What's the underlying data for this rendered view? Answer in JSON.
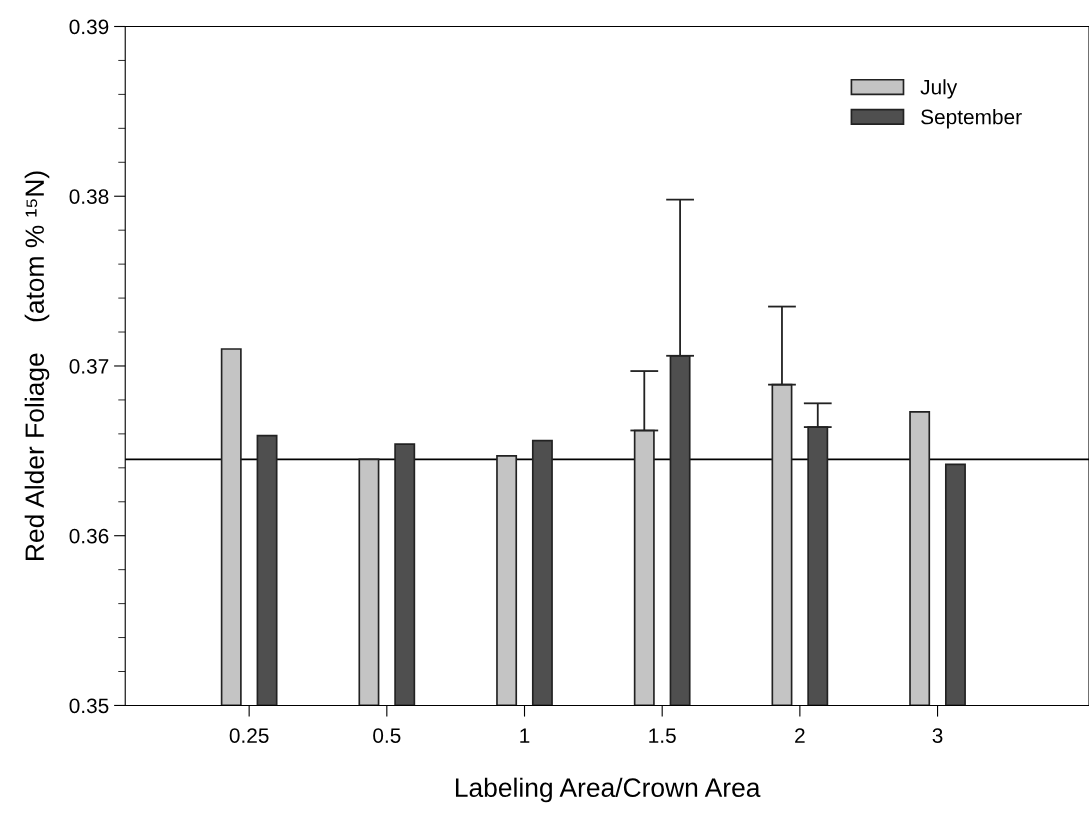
{
  "chart_data": {
    "type": "bar",
    "xlabel": "Labeling Area/Crown Area",
    "ylabel": "Red Alder Foliage    (atom % ¹⁵N)",
    "categories": [
      "0.25",
      "0.5",
      "1",
      "1.5",
      "2",
      "3"
    ],
    "series": [
      {
        "name": "July",
        "color": "#c4c4c4",
        "values": [
          0.371,
          0.3645,
          0.3647,
          0.3662,
          0.3689,
          0.3673
        ],
        "errors": [
          null,
          null,
          null,
          [
            0.3662,
            0.3697
          ],
          [
            0.3689,
            0.3735
          ],
          null
        ]
      },
      {
        "name": "September",
        "color": "#4f4f4f",
        "values": [
          0.3659,
          0.3654,
          0.3656,
          0.3706,
          0.3664,
          0.3642
        ],
        "errors": [
          null,
          null,
          null,
          [
            0.3706,
            0.3798
          ],
          [
            0.3664,
            0.3678
          ],
          null
        ]
      }
    ],
    "ylim": [
      0.35,
      0.39
    ],
    "yticks": [
      0.35,
      0.36,
      0.37,
      0.38,
      0.39
    ],
    "ref_lines": [
      {
        "axis": "y",
        "value": 0.3645,
        "color": "#000000"
      }
    ],
    "legend": "top right",
    "grid": false
  }
}
